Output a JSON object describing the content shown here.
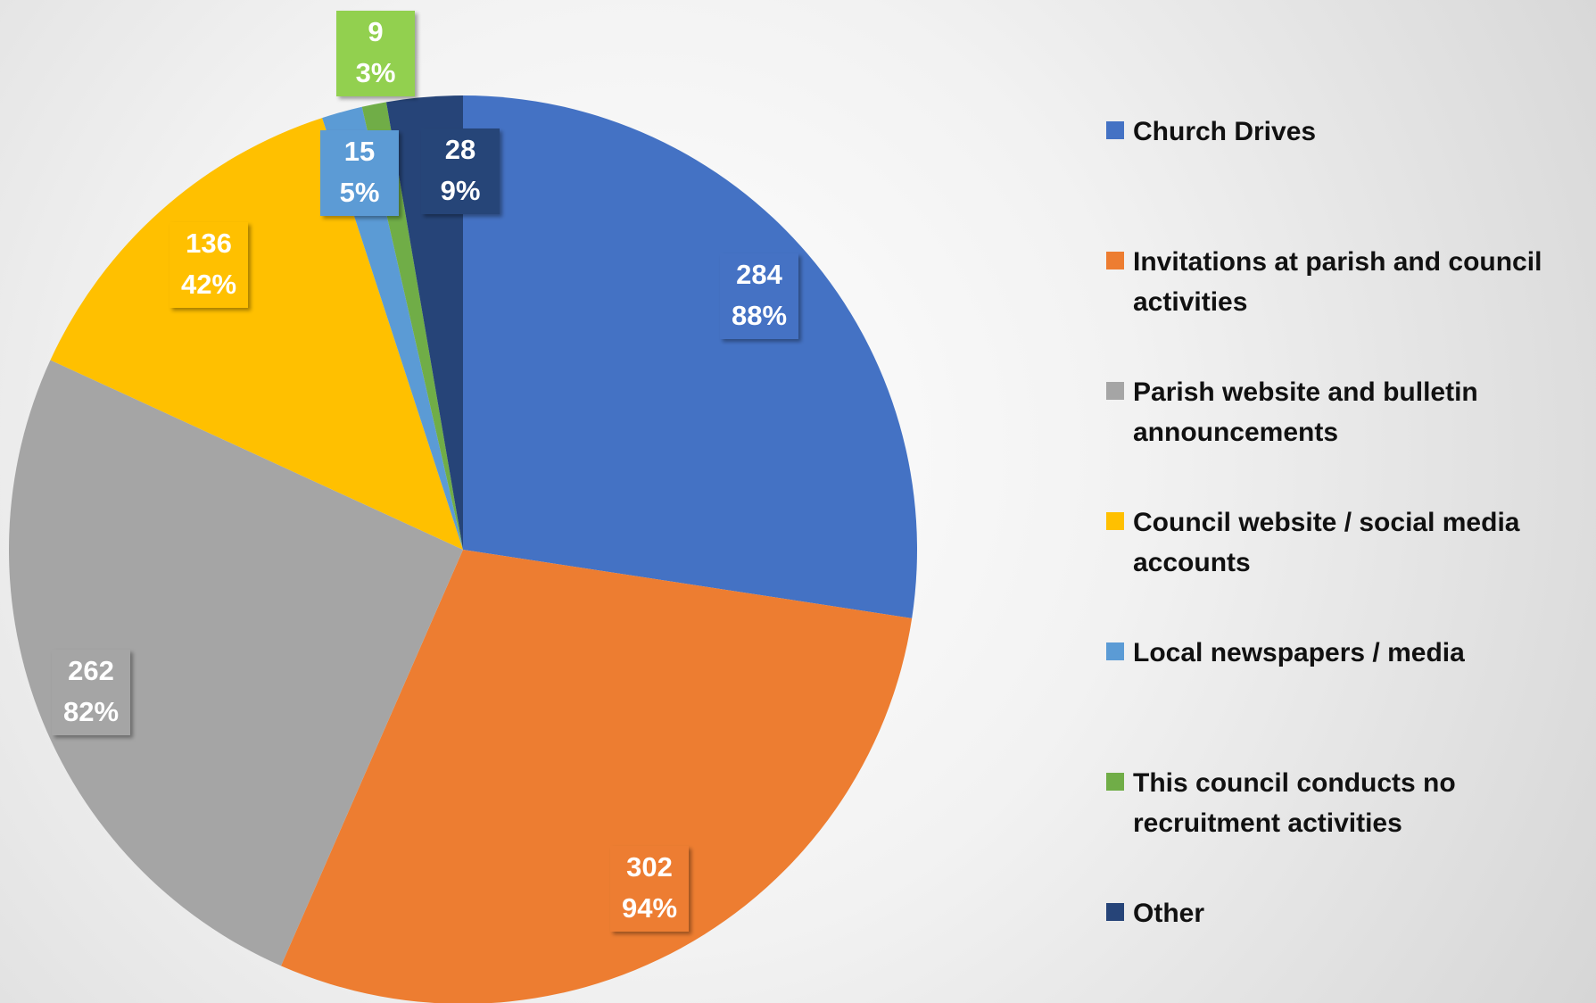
{
  "chart_data": {
    "type": "pie",
    "categories": [
      "Church Drives",
      "Invitations at parish and council activities",
      "Parish website and bulletin announcements",
      "Council website / social media accounts",
      "Local newspapers / media",
      "This council conducts no recruitment activities",
      "Other"
    ],
    "values": [
      284,
      302,
      262,
      136,
      15,
      9,
      28
    ],
    "percent_labels": [
      "88%",
      "94%",
      "82%",
      "42%",
      "5%",
      "3%",
      "9%"
    ],
    "colors": [
      "#4472c4",
      "#ed7d31",
      "#a5a5a5",
      "#ffc000",
      "#5b9bd5",
      "#70ad47",
      "#264478"
    ],
    "legend": "right"
  }
}
